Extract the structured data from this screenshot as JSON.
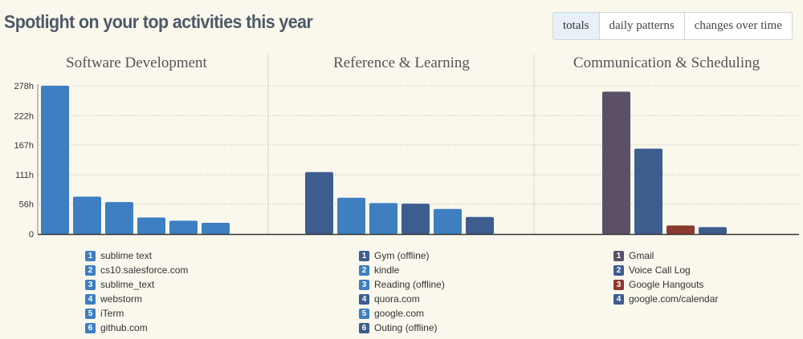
{
  "title": "Spotlight on your top activities this year",
  "tabs": [
    {
      "label": "totals",
      "active": true
    },
    {
      "label": "daily patterns",
      "active": false
    },
    {
      "label": "changes over time",
      "active": false
    }
  ],
  "chart_data": {
    "type": "bar",
    "unit": "h",
    "ylim": [
      0,
      278
    ],
    "yticks": [
      "0",
      "56h",
      "111h",
      "167h",
      "222h",
      "278h"
    ],
    "ytick_values": [
      0,
      56,
      111,
      167,
      222,
      278
    ],
    "grid": true,
    "panels": [
      {
        "title": "Software Development",
        "values": [
          278,
          70,
          60,
          31,
          25,
          21
        ],
        "colors": [
          "#3d7fc1",
          "#3d7fc1",
          "#3d7fc1",
          "#3d7fc1",
          "#3d7fc1",
          "#3d7fc1"
        ],
        "legend": [
          "sublime text",
          "cs10.salesforce.com",
          "sublime_text",
          "webstorm",
          "iTerm",
          "github.com"
        ]
      },
      {
        "title": "Reference & Learning",
        "values": [
          116,
          68,
          58,
          57,
          47,
          32
        ],
        "colors": [
          "#3d5d8f",
          "#3d7fc1",
          "#3d7fc1",
          "#3d5d8f",
          "#3d7fc1",
          "#3d5d8f"
        ],
        "legend": [
          "Gym (offline)",
          "kindle",
          "Reading (offline)",
          "quora.com",
          "google.com",
          "Outing (offline)"
        ]
      },
      {
        "title": "Communication & Scheduling",
        "values": [
          267,
          160,
          16,
          13
        ],
        "colors": [
          "#5b5068",
          "#3d5d8f",
          "#8b3a2e",
          "#3d5d8f"
        ],
        "legend": [
          "Gmail",
          "Voice Call Log",
          "Google Hangouts",
          "google.com/calendar"
        ]
      }
    ]
  }
}
